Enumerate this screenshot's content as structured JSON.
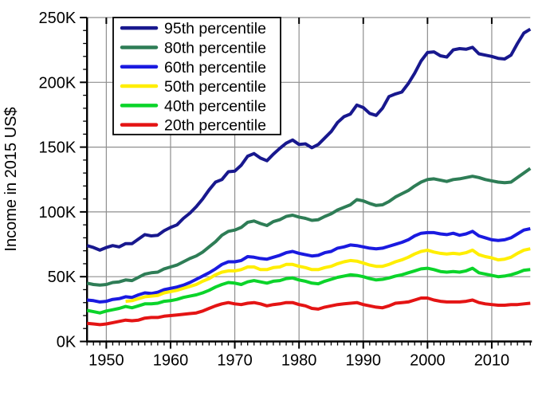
{
  "figure": {
    "background": "#ffffff",
    "axis_color": "#000000",
    "grid_color": "#8f8f8f",
    "legend_border_color": "#000000",
    "legend_background": "#ffffff"
  },
  "chart_data": {
    "type": "line",
    "title": "",
    "xlabel": "",
    "ylabel": "Income in 2015 US$",
    "y_unit": "thousands of 2015 US$",
    "xlim": [
      1947,
      2016
    ],
    "ylim": [
      0,
      250
    ],
    "grid": true,
    "legend_position": "top-left",
    "x_ticks": [
      1950,
      1960,
      1970,
      1980,
      1990,
      2000,
      2010
    ],
    "x_minor_step": 1,
    "y_ticks": {
      "values": [
        0,
        50,
        100,
        150,
        200,
        250
      ],
      "labels": [
        "0K",
        "50K",
        "100K",
        "150K",
        "200K",
        "250K"
      ]
    },
    "y_minor_step": 10,
    "series": [
      {
        "name": "95th percentile",
        "color": "#18188e",
        "start_year": 1947,
        "values": [
          74,
          72.5,
          70.5,
          72.5,
          74,
          73,
          75.5,
          75.5,
          79,
          82.5,
          81.5,
          82,
          85.5,
          88,
          90,
          95,
          99,
          104,
          110,
          117,
          123,
          125,
          131,
          131.5,
          136,
          143,
          145,
          141.5,
          139.5,
          144.5,
          149,
          153,
          155.5,
          152,
          152.5,
          149.5,
          152,
          157,
          162,
          169,
          173.5,
          175.5,
          182.5,
          180.5,
          176,
          174.5,
          180,
          189,
          191,
          192.5,
          199,
          207,
          216.5,
          223,
          223.5,
          220.5,
          219.5,
          225,
          226,
          225.5,
          227,
          222,
          221,
          220,
          218.5,
          218,
          221,
          230,
          238,
          241
        ]
      },
      {
        "name": "80th percentile",
        "color": "#2e7d56",
        "start_year": 1947,
        "values": [
          45,
          44,
          43.5,
          44,
          45.5,
          46,
          47.5,
          47,
          49.5,
          52,
          53,
          53.5,
          56,
          57.5,
          59,
          61.5,
          64,
          66,
          69,
          73,
          77,
          82,
          85,
          86,
          88,
          92,
          93,
          91,
          89.5,
          92.5,
          94,
          96.5,
          97.5,
          96,
          95,
          93.5,
          94,
          96.5,
          98.5,
          101.5,
          103.5,
          105.5,
          109.5,
          108.5,
          106.5,
          105,
          105.5,
          108,
          111.5,
          114,
          116.5,
          120,
          123,
          125,
          125.5,
          124.5,
          123.5,
          125,
          125.5,
          126.5,
          127.5,
          126.5,
          125,
          124,
          123,
          122.5,
          123,
          126.5,
          130,
          133.5
        ]
      },
      {
        "name": "60th percentile",
        "color": "#1a1ae0",
        "start_year": 1947,
        "values": [
          32,
          31.5,
          30.5,
          31,
          32.5,
          33,
          34.5,
          34,
          36,
          37.5,
          37,
          38,
          40,
          41,
          42,
          43.5,
          45.5,
          48,
          50.5,
          53,
          56,
          59.5,
          61.5,
          61.5,
          62.5,
          65.5,
          65,
          64,
          63.5,
          65,
          66.5,
          68.5,
          69.5,
          68,
          67,
          66,
          66.5,
          68.5,
          69.5,
          72,
          73,
          74.5,
          74,
          73,
          72,
          71.5,
          72,
          73.5,
          75,
          76.5,
          78.5,
          81.5,
          83.5,
          84,
          84,
          83,
          82.5,
          83.5,
          82,
          83,
          85,
          81.5,
          80,
          78.5,
          78,
          78.5,
          80,
          83,
          86,
          87
        ]
      },
      {
        "name": "50th percentile",
        "color": "#ffee00",
        "start_year": 1953,
        "values": [
          31,
          31.5,
          33,
          34.5,
          35,
          35.5,
          37.5,
          38.5,
          39.5,
          41,
          42.5,
          44,
          46.5,
          48.5,
          51.5,
          53.5,
          54.5,
          54.5,
          55.5,
          57.5,
          57.5,
          55.5,
          55.5,
          57,
          57.5,
          59.5,
          59.5,
          58,
          57,
          55.5,
          55.5,
          57,
          58,
          60,
          61.5,
          62.5,
          62,
          60.5,
          59,
          58,
          58,
          59.5,
          61.5,
          63,
          65,
          67.5,
          69.5,
          70.5,
          69,
          68,
          67.5,
          68,
          67.5,
          68.5,
          70.5,
          67,
          65.5,
          64.5,
          63,
          63.5,
          65,
          68,
          70.5,
          71.5
        ]
      },
      {
        "name": "40th percentile",
        "color": "#0bd42a",
        "start_year": 1947,
        "values": [
          24,
          23,
          22,
          23.5,
          24.5,
          25.5,
          27,
          26,
          27.5,
          29,
          29,
          29.5,
          31,
          31.5,
          32.5,
          34,
          35,
          36,
          37.5,
          39.5,
          42,
          44,
          45.5,
          45,
          44,
          46,
          47,
          46,
          45,
          46.5,
          47,
          48.5,
          49,
          47.5,
          46.5,
          45,
          44.5,
          46.5,
          48,
          49.5,
          50.5,
          51.5,
          51,
          50,
          48.5,
          47.5,
          48,
          49,
          50.5,
          51.5,
          53,
          54.5,
          56,
          56.5,
          55.5,
          54,
          53.5,
          54,
          53.5,
          54.5,
          56.5,
          53,
          52,
          51,
          50,
          50.5,
          51.5,
          53,
          55,
          55.5
        ]
      },
      {
        "name": "20th percentile",
        "color": "#e41414",
        "start_year": 1947,
        "values": [
          14,
          13.5,
          13,
          13.5,
          14.5,
          15.5,
          16.5,
          16,
          16.5,
          18,
          18.5,
          18.5,
          19.5,
          20,
          20.5,
          21,
          21.5,
          22,
          23.5,
          25.5,
          27.5,
          29,
          30,
          29,
          28.5,
          29.5,
          30,
          29,
          27.5,
          28.5,
          29,
          30,
          30,
          28.5,
          27.5,
          25.5,
          25,
          26.5,
          27.5,
          28.5,
          29,
          29.5,
          30,
          28.5,
          27.5,
          26.5,
          26,
          27.5,
          29.5,
          30,
          30.5,
          32,
          33.5,
          33.5,
          32,
          31,
          30.5,
          30.5,
          30.5,
          31,
          32,
          30,
          29,
          28.5,
          28,
          28,
          28.5,
          28.5,
          29,
          29.5
        ]
      }
    ]
  }
}
